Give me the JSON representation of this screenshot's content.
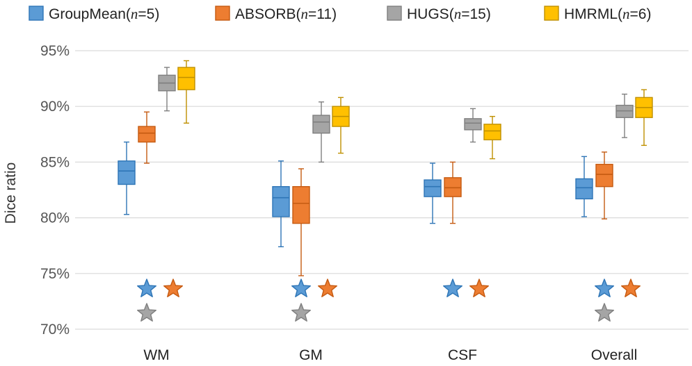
{
  "chart_data": {
    "type": "boxplot",
    "ylabel": "Dice ratio",
    "ylim": [
      70,
      95
    ],
    "yticks": [
      70,
      75,
      80,
      85,
      90,
      95
    ],
    "ytick_labels": [
      "70%",
      "75%",
      "80%",
      "85%",
      "90%",
      "95%"
    ],
    "grid": true,
    "legend_position": "top",
    "categories": [
      "WM",
      "GM",
      "CSF",
      "Overall"
    ],
    "series": [
      {
        "name": "GroupMean",
        "n": "5",
        "color": "#5b9bd5",
        "edge": "#2e75b6",
        "boxes": [
          {
            "min": 80.3,
            "q1": 83.0,
            "median": 84.2,
            "q3": 85.1,
            "max": 86.8
          },
          {
            "min": 77.4,
            "q1": 80.1,
            "median": 81.8,
            "q3": 82.8,
            "max": 85.1
          },
          {
            "min": 79.5,
            "q1": 81.9,
            "median": 82.8,
            "q3": 83.4,
            "max": 84.9
          },
          {
            "min": 80.1,
            "q1": 81.7,
            "median": 82.7,
            "q3": 83.5,
            "max": 85.5
          }
        ]
      },
      {
        "name": "ABSORB",
        "n": "11",
        "color": "#ed7d31",
        "edge": "#c55a11",
        "boxes": [
          {
            "min": 84.9,
            "q1": 86.8,
            "median": 87.6,
            "q3": 88.2,
            "max": 89.5
          },
          {
            "min": 74.8,
            "q1": 79.5,
            "median": 81.3,
            "q3": 82.8,
            "max": 84.4
          },
          {
            "min": 79.5,
            "q1": 81.9,
            "median": 82.7,
            "q3": 83.6,
            "max": 85.0
          },
          {
            "min": 79.9,
            "q1": 82.8,
            "median": 83.9,
            "q3": 84.8,
            "max": 85.9
          }
        ]
      },
      {
        "name": "HUGS",
        "n": "15",
        "color": "#a5a5a5",
        "edge": "#7f7f7f",
        "boxes": [
          {
            "min": 89.6,
            "q1": 91.4,
            "median": 92.1,
            "q3": 92.8,
            "max": 93.5
          },
          {
            "min": 85.0,
            "q1": 87.6,
            "median": 88.6,
            "q3": 89.2,
            "max": 90.4
          },
          {
            "min": 86.8,
            "q1": 87.9,
            "median": 88.5,
            "q3": 88.9,
            "max": 89.8
          },
          {
            "min": 87.2,
            "q1": 89.0,
            "median": 89.6,
            "q3": 90.1,
            "max": 91.1
          }
        ]
      },
      {
        "name": "HMRML",
        "n": "6",
        "color": "#ffc000",
        "edge": "#bf9000",
        "boxes": [
          {
            "min": 88.5,
            "q1": 91.5,
            "median": 92.6,
            "q3": 93.5,
            "max": 94.1
          },
          {
            "min": 85.8,
            "q1": 88.2,
            "median": 89.1,
            "q3": 90.0,
            "max": 90.8
          },
          {
            "min": 85.3,
            "q1": 87.0,
            "median": 87.8,
            "q3": 88.4,
            "max": 89.1
          },
          {
            "min": 86.5,
            "q1": 89.0,
            "median": 89.9,
            "q3": 90.8,
            "max": 91.5
          }
        ]
      }
    ],
    "annotations": [
      {
        "category": "WM",
        "series": "GroupMean",
        "symbol": "star",
        "row": 1
      },
      {
        "category": "WM",
        "series": "ABSORB",
        "symbol": "star",
        "row": 1
      },
      {
        "category": "WM",
        "series": "HUGS",
        "symbol": "star",
        "row": 2
      },
      {
        "category": "GM",
        "series": "GroupMean",
        "symbol": "star",
        "row": 1
      },
      {
        "category": "GM",
        "series": "ABSORB",
        "symbol": "star",
        "row": 1
      },
      {
        "category": "GM",
        "series": "HUGS",
        "symbol": "star",
        "row": 2
      },
      {
        "category": "CSF",
        "series": "GroupMean",
        "symbol": "star",
        "row": 1
      },
      {
        "category": "CSF",
        "series": "ABSORB",
        "symbol": "star",
        "row": 1
      },
      {
        "category": "Overall",
        "series": "GroupMean",
        "symbol": "star",
        "row": 1
      },
      {
        "category": "Overall",
        "series": "ABSORB",
        "symbol": "star",
        "row": 1
      },
      {
        "category": "Overall",
        "series": "HUGS",
        "symbol": "star",
        "row": 2
      }
    ]
  }
}
